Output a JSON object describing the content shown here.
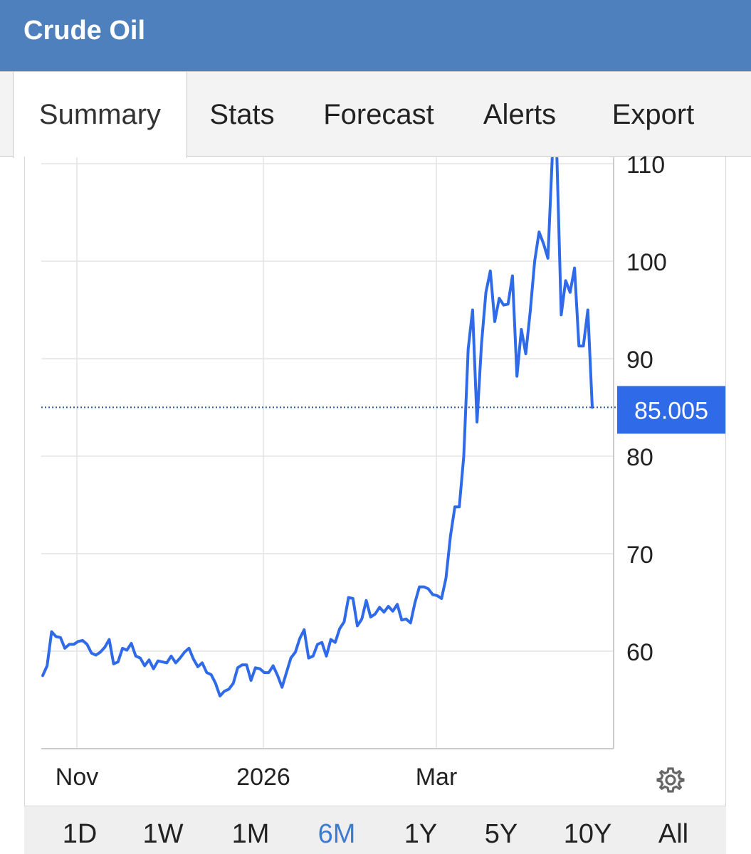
{
  "header": {
    "title": "Crude Oil"
  },
  "tabs": [
    {
      "label": "Summary",
      "active": true
    },
    {
      "label": "Stats",
      "active": false
    },
    {
      "label": "Forecast",
      "active": false
    },
    {
      "label": "Alerts",
      "active": false
    },
    {
      "label": "Export",
      "active": false
    }
  ],
  "ranges": [
    {
      "label": "1D"
    },
    {
      "label": "1W"
    },
    {
      "label": "1M"
    },
    {
      "label": "6M",
      "active": true
    },
    {
      "label": "1Y"
    },
    {
      "label": "5Y"
    },
    {
      "label": "10Y"
    },
    {
      "label": "All"
    }
  ],
  "colors": {
    "header": "#4e80bd",
    "line": "#2f6ae8",
    "price_badge": "#2f6ae8",
    "active_range": "#3a7bd5"
  },
  "icons": {
    "settings": "gear-icon"
  },
  "chart_data": {
    "type": "line",
    "title": "",
    "xlabel": "",
    "ylabel": "",
    "x_ticks": [
      "Nov",
      "2026",
      "Mar"
    ],
    "y_ticks": [
      60,
      70,
      80,
      90,
      100,
      110
    ],
    "ylim": [
      50,
      110.5
    ],
    "grid": true,
    "last_price_label": "85.005",
    "last_price": 85.005,
    "series": [
      {
        "values": [
          57.5,
          58.5,
          62.0,
          61.5,
          61.4,
          60.3,
          60.7,
          60.7,
          61.0,
          61.1,
          60.7,
          59.8,
          59.6,
          59.9,
          60.4,
          61.2,
          58.7,
          58.9,
          60.3,
          60.1,
          60.8,
          59.5,
          59.3,
          58.5,
          59.1,
          58.2,
          59.0,
          58.9,
          58.8,
          59.5,
          58.8,
          59.3,
          59.9,
          60.3,
          59.2,
          58.4,
          58.8,
          57.8,
          57.6,
          56.7,
          55.4,
          55.9,
          56.1,
          56.7,
          58.3,
          58.6,
          58.6,
          57.0,
          58.3,
          58.2,
          57.8,
          57.8,
          58.5,
          57.5,
          56.3,
          57.8,
          59.3,
          59.9,
          61.3,
          62.2,
          59.3,
          59.5,
          60.7,
          60.9,
          59.5,
          61.2,
          60.9,
          62.3,
          63.0,
          65.5,
          65.4,
          62.6,
          63.3,
          65.2,
          63.5,
          63.8,
          64.5,
          64.0,
          64.6,
          64.1,
          64.8,
          63.2,
          63.3,
          62.9,
          65.0,
          66.6,
          66.6,
          66.4,
          65.8,
          65.7,
          65.4,
          67.5,
          71.8,
          74.8,
          74.8,
          80.0,
          91.0,
          95.0,
          83.5,
          91.5,
          96.8,
          99.0,
          93.8,
          96.2,
          95.5,
          95.6,
          98.5,
          88.2,
          93.0,
          90.5,
          94.8,
          100.0,
          103.0,
          101.8,
          100.3,
          111.0,
          111.0,
          94.5,
          98.0,
          96.8,
          99.3,
          91.3,
          91.3,
          95.0,
          85.005
        ]
      }
    ]
  }
}
